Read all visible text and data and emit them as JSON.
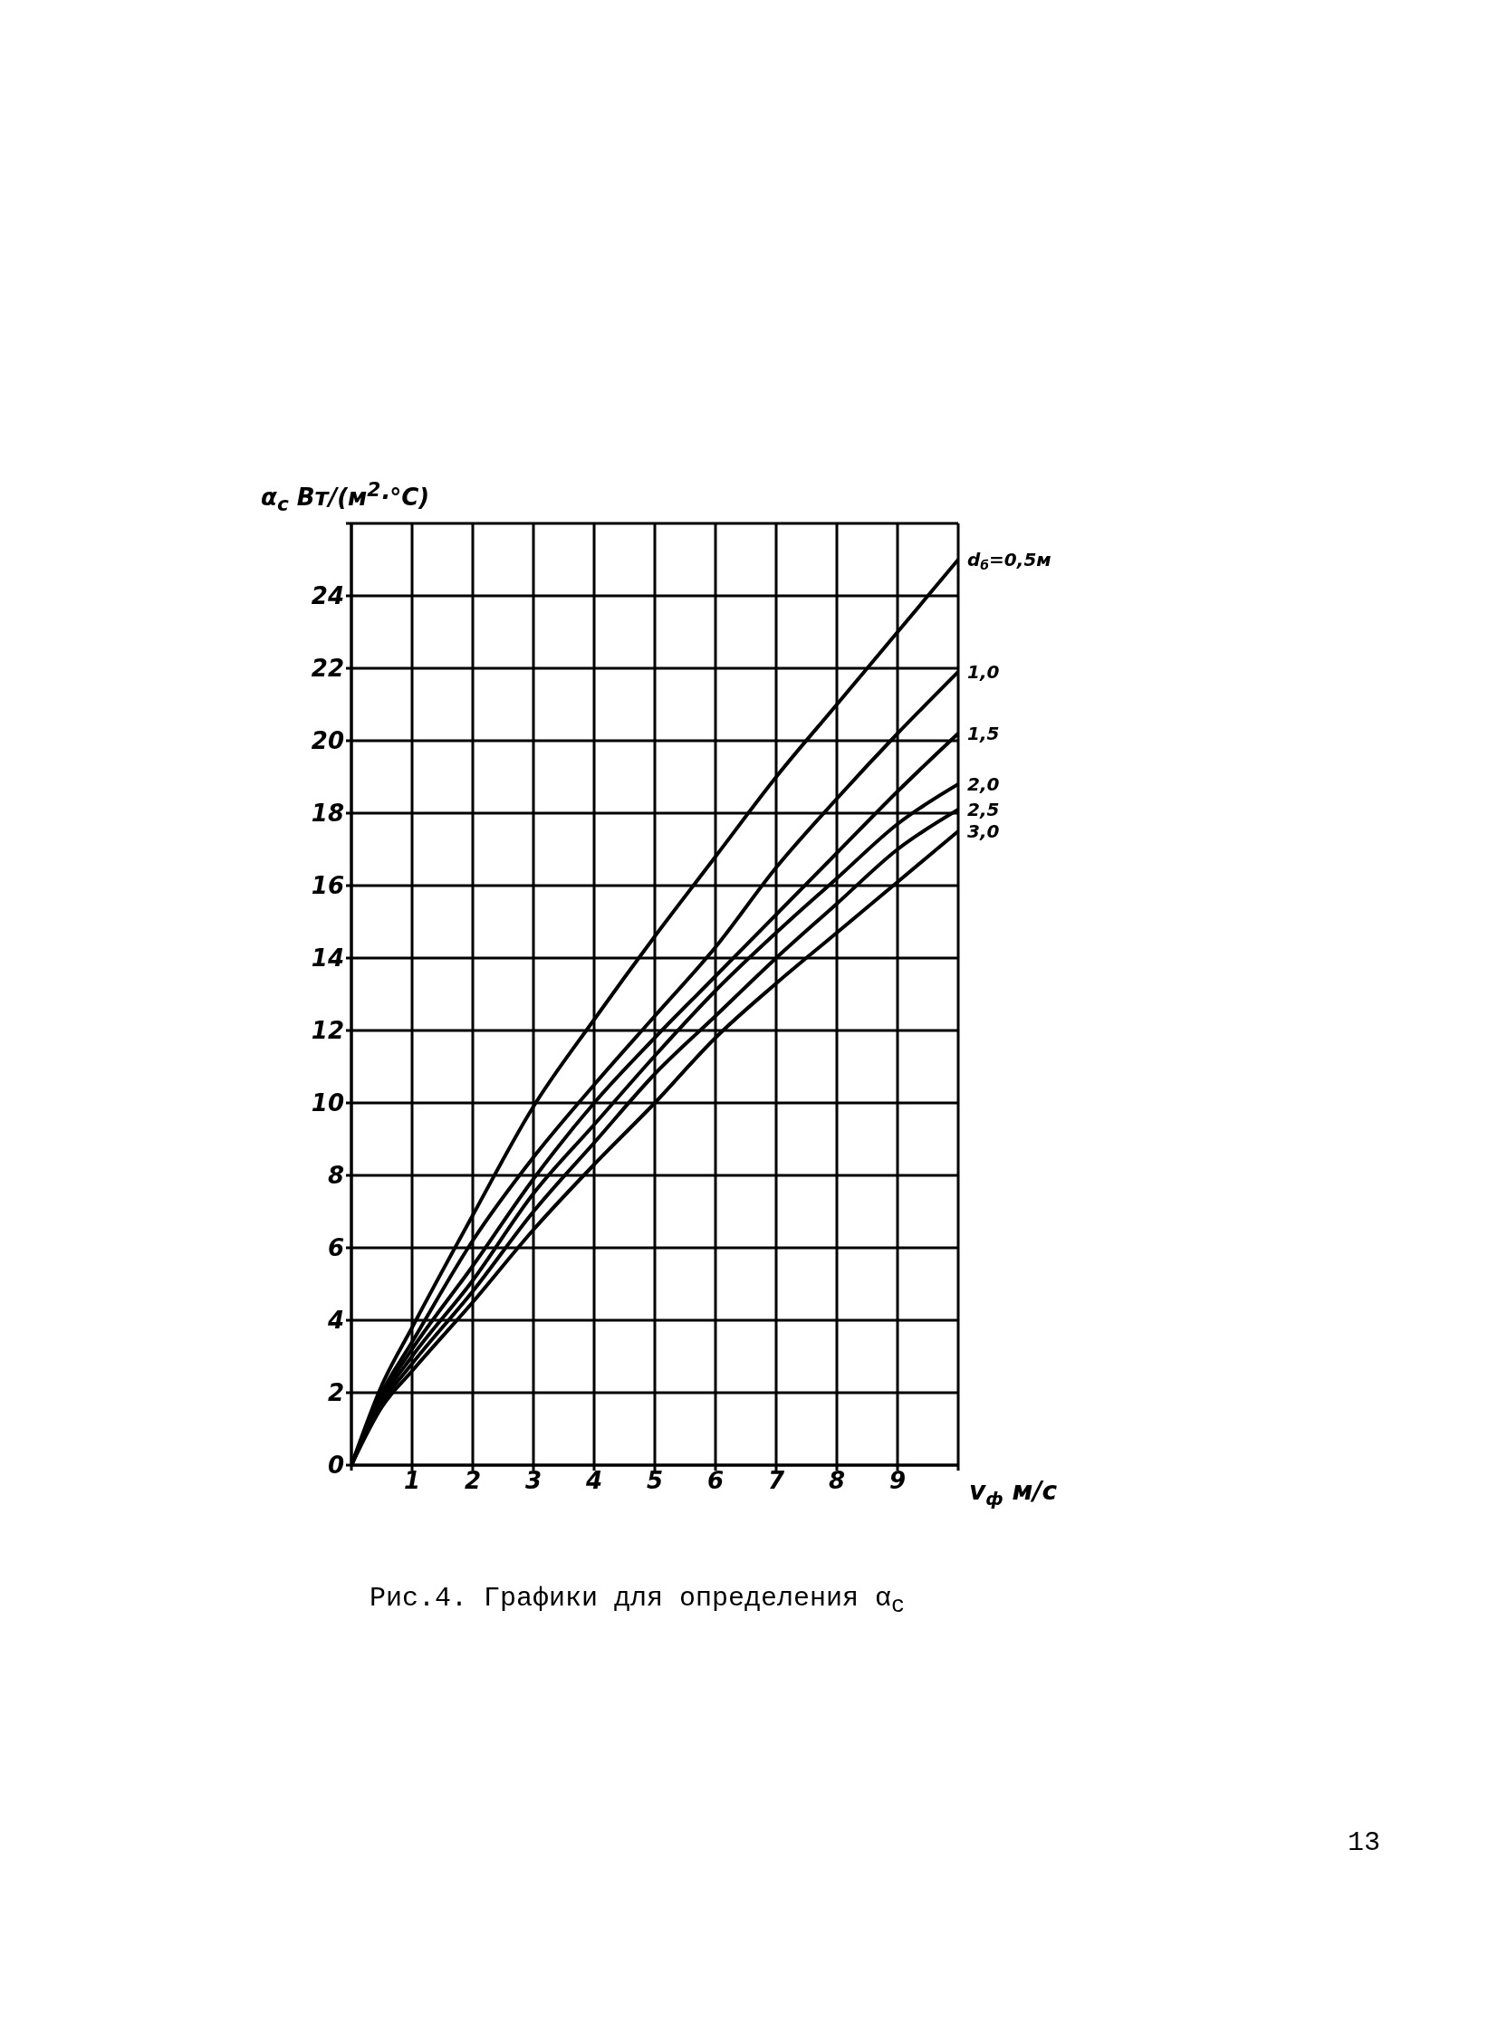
{
  "chart_data": {
    "type": "line",
    "ylabel": "α$_{с}$ Вт/(м$^{2}$·°С)",
    "xlabel": "v$_{ф}$ м/с",
    "annotations": [
      "Рис.4. Графики для определения α$_{с}$",
      "13"
    ],
    "x": [
      0,
      0.5,
      1,
      2,
      3,
      4,
      5,
      6,
      7,
      8,
      9,
      10
    ],
    "series": [
      {
        "name": "d$_{б}$=0,5м",
        "color": "#000000",
        "values": [
          0,
          2.2,
          3.8,
          6.9,
          9.9,
          12.3,
          14.6,
          16.8,
          19.0,
          21.0,
          23.0,
          25.0
        ]
      },
      {
        "name": "1,0",
        "color": "#000000",
        "values": [
          0,
          2.0,
          3.4,
          6.2,
          8.5,
          10.5,
          12.4,
          14.3,
          16.5,
          18.4,
          20.2,
          21.9
        ]
      },
      {
        "name": "1,5",
        "color": "#000000",
        "values": [
          0,
          1.9,
          3.2,
          5.5,
          7.9,
          10.0,
          11.8,
          13.5,
          15.2,
          16.9,
          18.6,
          20.2
        ]
      },
      {
        "name": "2,0",
        "color": "#000000",
        "values": [
          0,
          1.8,
          3.0,
          5.1,
          7.5,
          9.4,
          11.3,
          13.1,
          14.7,
          16.2,
          17.7,
          18.8
        ]
      },
      {
        "name": "2,5",
        "color": "#000000",
        "values": [
          0,
          1.7,
          2.8,
          4.8,
          7.0,
          8.9,
          10.8,
          12.4,
          14.0,
          15.5,
          17.0,
          18.1
        ]
      },
      {
        "name": "3,0",
        "color": "#000000",
        "values": [
          0,
          1.6,
          2.6,
          4.5,
          6.5,
          8.3,
          10.0,
          11.8,
          13.3,
          14.7,
          16.1,
          17.5
        ]
      }
    ],
    "xlim": [
      0,
      10
    ],
    "xticks": [
      {
        "value": 0,
        "label": null
      },
      1,
      2,
      3,
      4,
      5,
      6,
      7,
      8,
      9,
      {
        "value": 10,
        "label": null
      }
    ],
    "ylim": [
      0,
      26
    ],
    "yticks": [
      0,
      2,
      4,
      6,
      8,
      10,
      12,
      14,
      16,
      18,
      20,
      22,
      24,
      {
        "value": 26,
        "label": null
      }
    ],
    "grid": true,
    "marker": "none",
    "line_style": "solid"
  }
}
